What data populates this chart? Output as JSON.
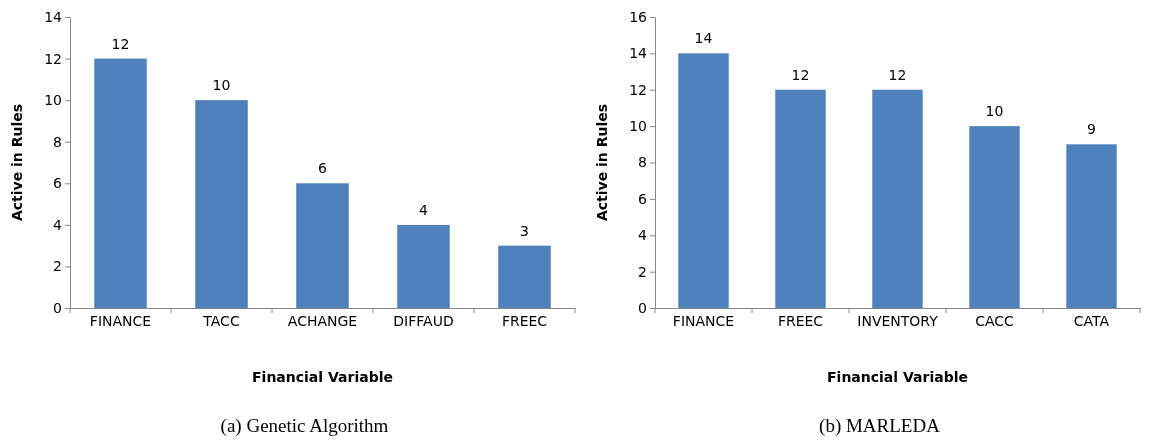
{
  "chart_data": [
    {
      "type": "bar",
      "categories": [
        "FINANCE",
        "TACC",
        "ACHANGE",
        "DIFFAUD",
        "FREEC"
      ],
      "values": [
        12,
        10,
        6,
        4,
        3
      ],
      "color": "#4f81bd",
      "ylim": [
        0,
        14
      ],
      "yticks": [
        0,
        2,
        4,
        6,
        8,
        10,
        12,
        14
      ],
      "xlabel": "Financial Variable",
      "ylabel": "Active in Rules",
      "data_labels": true,
      "annotations": [
        "(a) Genetic Algorithm"
      ]
    },
    {
      "type": "bar",
      "categories": [
        "FINANCE",
        "FREEC",
        "INVENTORY",
        "CACC",
        "CATA"
      ],
      "values": [
        14,
        12,
        12,
        10,
        9
      ],
      "color": "#4f81bd",
      "ylim": [
        0,
        16
      ],
      "yticks": [
        0,
        2,
        4,
        6,
        8,
        10,
        12,
        14,
        16
      ],
      "xlabel": "Financial Variable",
      "ylabel": "Active in Rules",
      "data_labels": true,
      "annotations": [
        "(b) MARLEDA"
      ]
    }
  ]
}
